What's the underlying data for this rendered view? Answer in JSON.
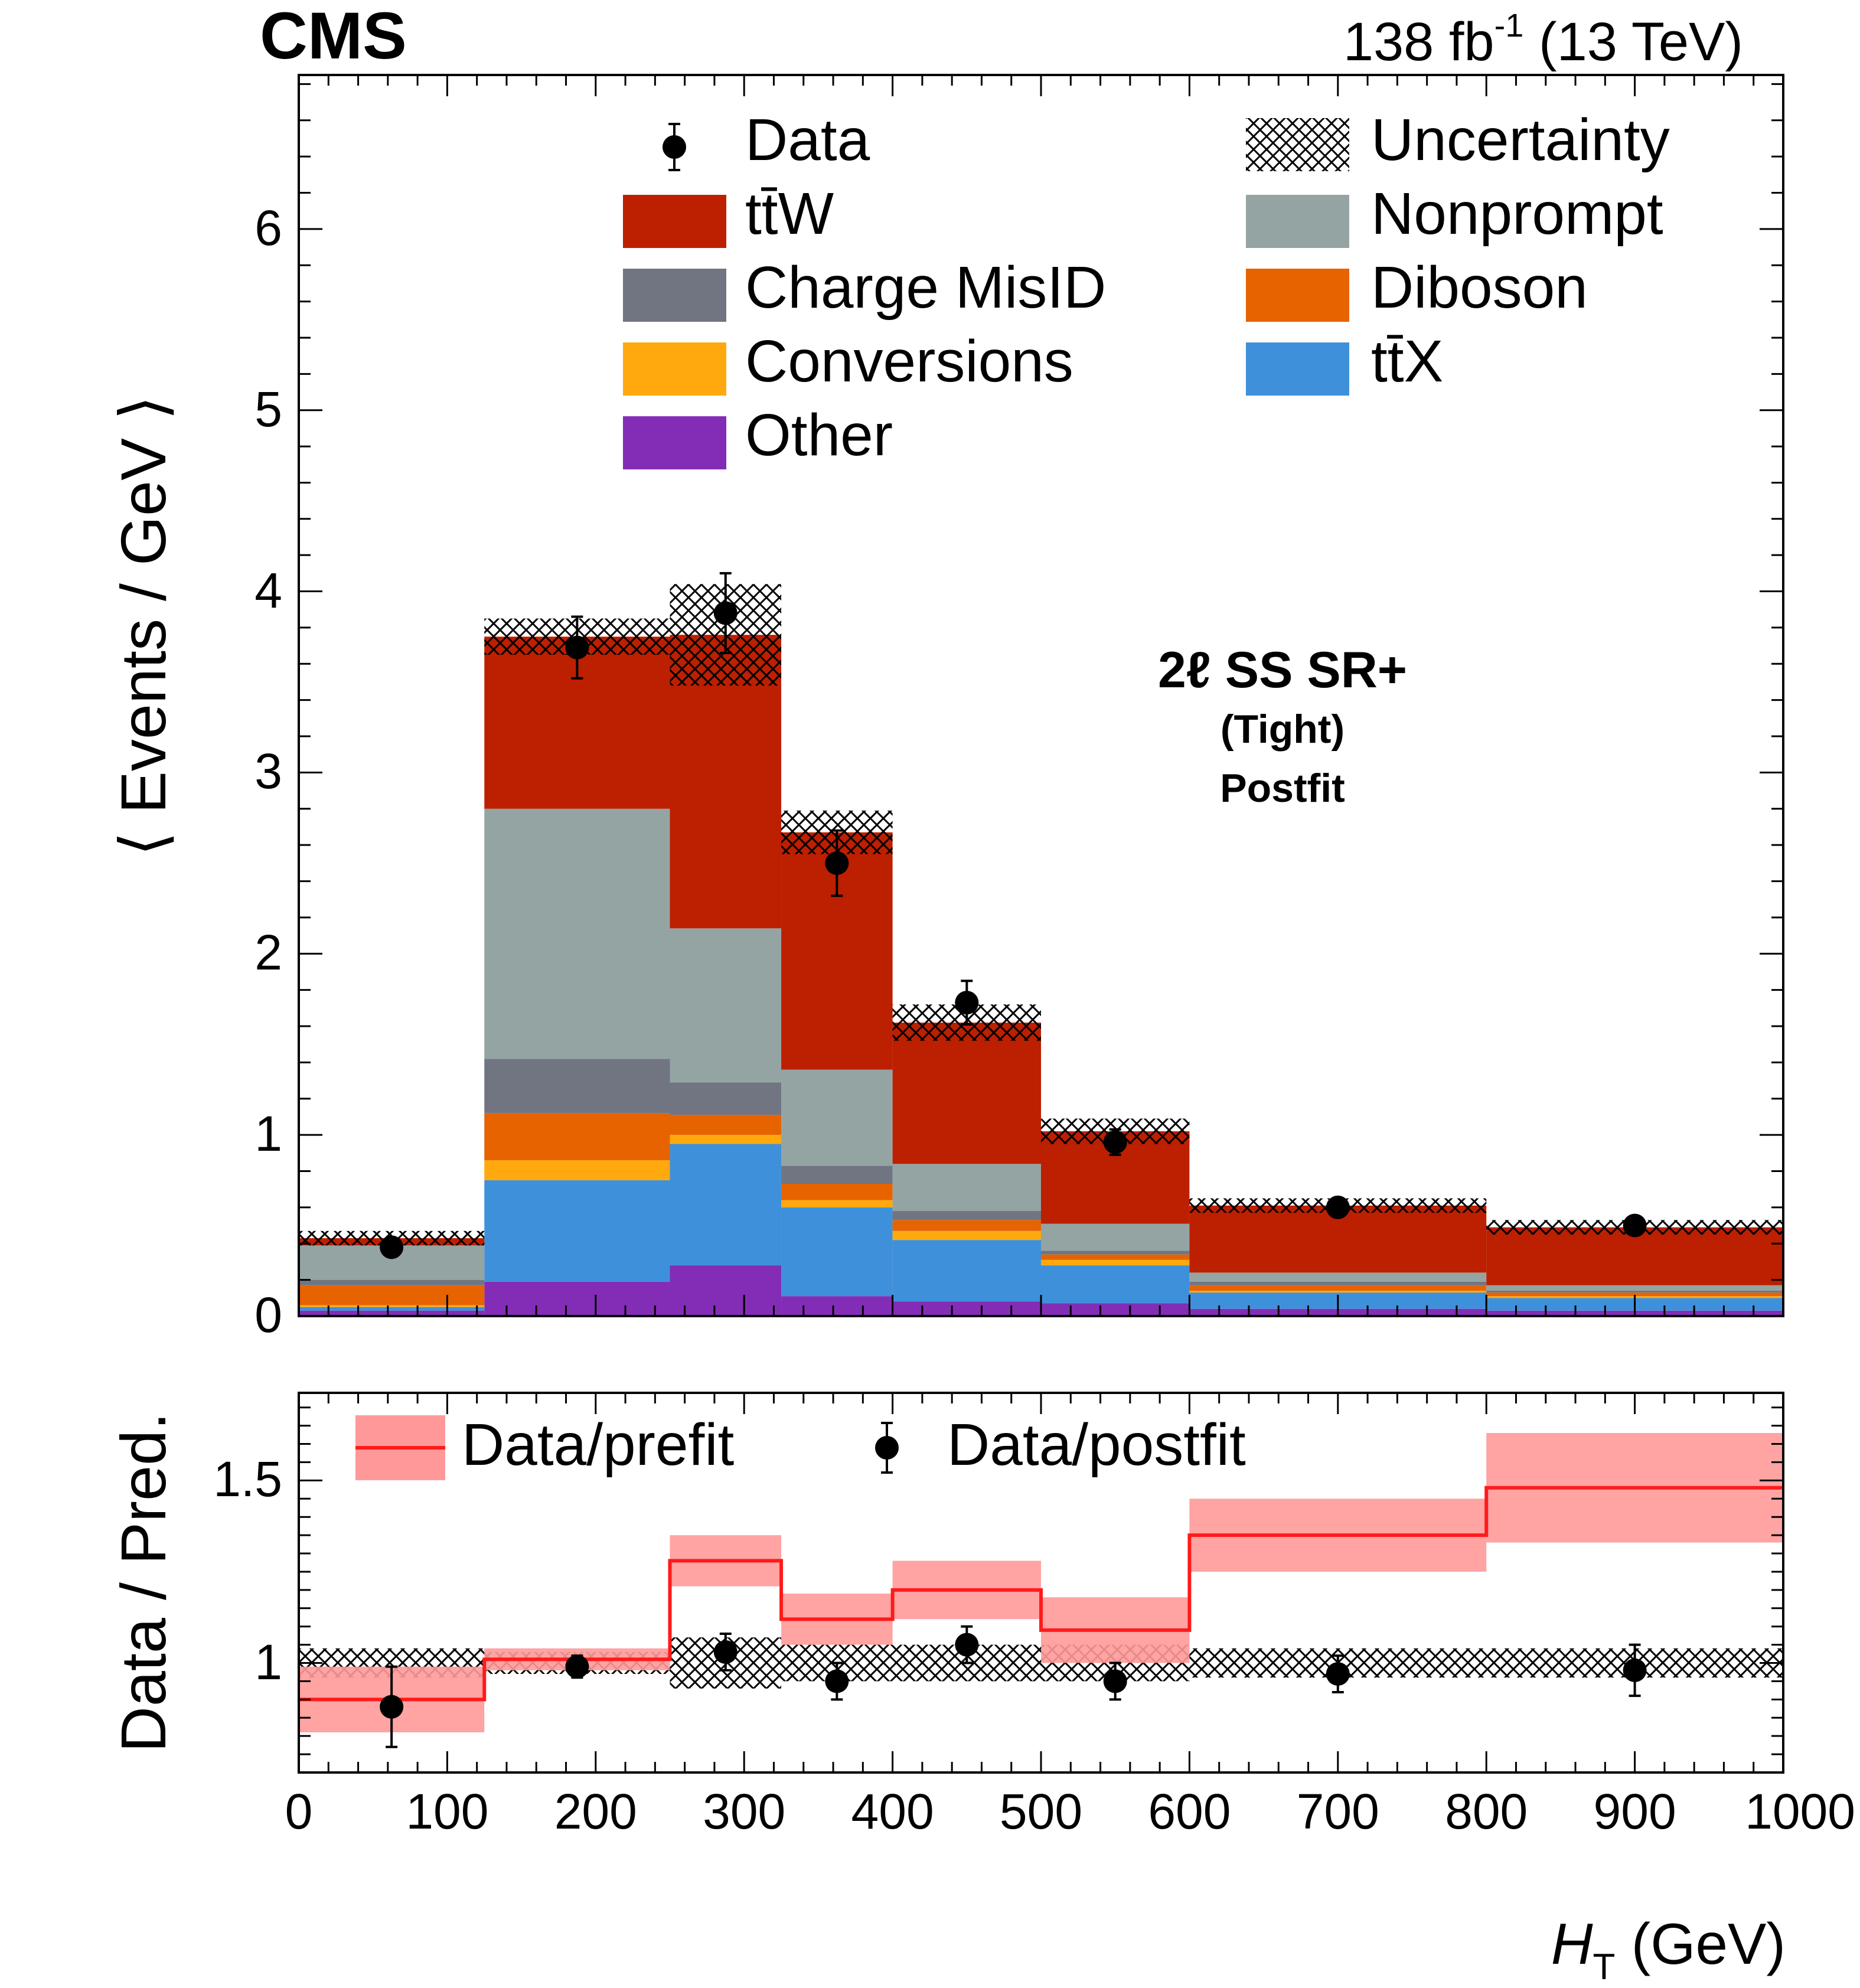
{
  "header": {
    "experiment": "CMS",
    "lumi": "138 fb",
    "lumi_exp": "-1",
    "energy": " (13 TeV)"
  },
  "chart_data": [
    {
      "type": "bar",
      "stacked": true,
      "ylabel": "⟨ Events / GeV ⟩",
      "ylim": [
        0,
        6.85
      ],
      "xlim": [
        0,
        1000
      ],
      "y_ticks": [
        "0",
        "1",
        "2",
        "3",
        "4",
        "5",
        "6"
      ],
      "annotation": [
        "2ℓ SS SR+",
        "(Tight)",
        "Postfit"
      ],
      "bin_edges": [
        0,
        125,
        250,
        325,
        400,
        500,
        600,
        800,
        1000
      ],
      "series": [
        {
          "name": "Other",
          "color": "#832db6",
          "values": [
            0.03,
            0.19,
            0.28,
            0.11,
            0.08,
            0.07,
            0.04,
            0.03
          ]
        },
        {
          "name": "tt̄X",
          "color": "#3f90da",
          "values": [
            0.02,
            0.56,
            0.67,
            0.49,
            0.34,
            0.21,
            0.09,
            0.07
          ]
        },
        {
          "name": "Conversions",
          "color": "#ffa90e",
          "values": [
            0.01,
            0.11,
            0.05,
            0.04,
            0.05,
            0.03,
            0.01,
            0.01
          ]
        },
        {
          "name": "Diboson",
          "color": "#e76300",
          "values": [
            0.11,
            0.26,
            0.11,
            0.09,
            0.06,
            0.03,
            0.03,
            0.02
          ]
        },
        {
          "name": "Charge MisID",
          "color": "#717581",
          "values": [
            0.03,
            0.3,
            0.18,
            0.1,
            0.05,
            0.02,
            0.02,
            0.01
          ]
        },
        {
          "name": "Nonprompt",
          "color": "#94a4a2",
          "values": [
            0.19,
            1.38,
            0.85,
            0.53,
            0.26,
            0.15,
            0.05,
            0.03
          ]
        },
        {
          "name": "tt̄W",
          "color": "#bd1f01",
          "values": [
            0.04,
            0.95,
            1.62,
            1.31,
            0.78,
            0.51,
            0.37,
            0.32
          ]
        }
      ],
      "uncertainty": {
        "name": "Uncertainty",
        "half_width": [
          0.04,
          0.1,
          0.28,
          0.12,
          0.1,
          0.07,
          0.04,
          0.04
        ]
      },
      "data": {
        "name": "Data",
        "x": [
          62.5,
          187.5,
          287.5,
          362.5,
          450,
          550,
          700,
          900
        ],
        "y": [
          0.38,
          3.69,
          3.88,
          2.5,
          1.73,
          0.96,
          0.6,
          0.5
        ],
        "err": [
          0.04,
          0.17,
          0.22,
          0.18,
          0.12,
          0.07,
          0.03,
          0.02
        ]
      },
      "legend_order": [
        "Data",
        "Uncertainty",
        "tt̄W",
        "Nonprompt",
        "Charge MisID",
        "Diboson",
        "Conversions",
        "tt̄X",
        "Other"
      ]
    },
    {
      "type": "line",
      "ylabel": "Data / Pred.",
      "xlabel": "H_T (GeV)",
      "xlabel_main": "H",
      "xlabel_sub": "T",
      "xlabel_unit": " (GeV)",
      "xlim": [
        0,
        1000
      ],
      "ylim": [
        0.7,
        1.74
      ],
      "x_ticks": [
        "0",
        "100",
        "200",
        "300",
        "400",
        "500",
        "600",
        "700",
        "800",
        "900",
        "1000"
      ],
      "y_ticks": [
        "1",
        "1.5"
      ],
      "y_tick_values": [
        1,
        1.5
      ],
      "bin_edges": [
        0,
        125,
        250,
        325,
        400,
        500,
        600,
        800,
        1000
      ],
      "prefit": {
        "name": "Data/prefit",
        "color": "#ff1a1a",
        "band_color": "#ff9999",
        "values": [
          0.9,
          1.01,
          1.28,
          1.12,
          1.2,
          1.09,
          1.35,
          1.48
        ],
        "band": [
          0.09,
          0.03,
          0.07,
          0.07,
          0.08,
          0.09,
          0.1,
          0.15
        ]
      },
      "postfit": {
        "name": "Data/postfit",
        "x": [
          62.5,
          187.5,
          287.5,
          362.5,
          450,
          550,
          700,
          900
        ],
        "y": [
          0.88,
          0.99,
          1.03,
          0.95,
          1.05,
          0.95,
          0.97,
          0.98
        ],
        "err": [
          0.11,
          0.03,
          0.05,
          0.05,
          0.05,
          0.05,
          0.05,
          0.07
        ]
      },
      "uncertainty_half_width": [
        0.04,
        0.03,
        0.07,
        0.05,
        0.05,
        0.05,
        0.04,
        0.04
      ]
    }
  ]
}
